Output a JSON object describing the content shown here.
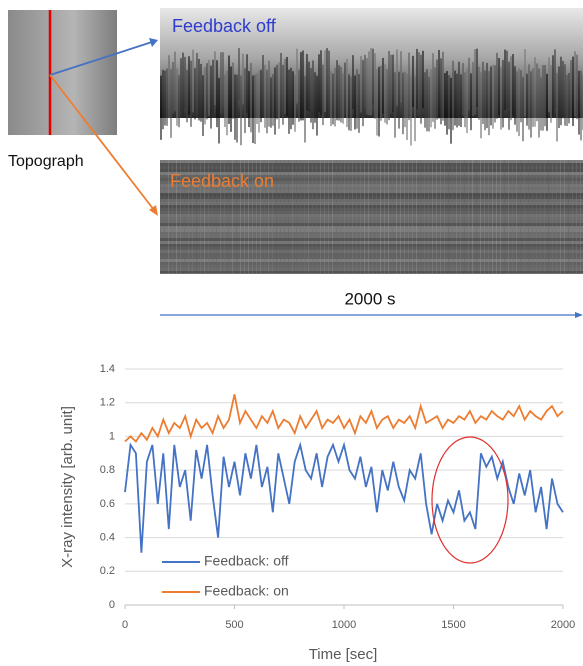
{
  "figure": {
    "topograph_label": "Topograph",
    "feedback_off_label": "Feedback off",
    "feedback_on_label": "Feedback on",
    "duration_label": "2000 s"
  },
  "chart_data": {
    "type": "line",
    "xlabel": "Time [sec]",
    "ylabel": "X-ray intensity [arb. unit]",
    "x": [
      0,
      25,
      50,
      75,
      100,
      125,
      150,
      175,
      200,
      225,
      250,
      275,
      300,
      325,
      350,
      375,
      400,
      425,
      450,
      475,
      500,
      525,
      550,
      575,
      600,
      625,
      650,
      675,
      700,
      725,
      750,
      775,
      800,
      825,
      850,
      875,
      900,
      925,
      950,
      975,
      1000,
      1025,
      1050,
      1075,
      1100,
      1125,
      1150,
      1175,
      1200,
      1225,
      1250,
      1275,
      1300,
      1325,
      1350,
      1375,
      1400,
      1425,
      1450,
      1475,
      1500,
      1525,
      1550,
      1575,
      1600,
      1625,
      1650,
      1675,
      1700,
      1725,
      1750,
      1775,
      1800,
      1825,
      1850,
      1875,
      1900,
      1925,
      1950,
      1975,
      2000
    ],
    "series": [
      {
        "name": "Feedback: off",
        "color": "#4472c4",
        "values": [
          0.67,
          0.95,
          0.9,
          0.31,
          0.85,
          0.95,
          0.6,
          0.9,
          0.45,
          0.95,
          0.7,
          0.8,
          0.5,
          0.92,
          0.75,
          0.95,
          0.65,
          0.4,
          0.88,
          0.7,
          0.85,
          0.65,
          0.9,
          0.75,
          0.95,
          0.7,
          0.82,
          0.55,
          0.9,
          0.75,
          0.6,
          0.85,
          0.95,
          0.8,
          0.75,
          0.9,
          0.7,
          0.88,
          0.95,
          0.85,
          0.95,
          0.8,
          0.75,
          0.88,
          0.7,
          0.82,
          0.55,
          0.8,
          0.68,
          0.85,
          0.7,
          0.62,
          0.8,
          0.75,
          0.9,
          0.6,
          0.42,
          0.6,
          0.5,
          0.62,
          0.55,
          0.68,
          0.5,
          0.55,
          0.45,
          0.9,
          0.82,
          0.88,
          0.75,
          0.85,
          0.7,
          0.6,
          0.78,
          0.65,
          0.8,
          0.55,
          0.7,
          0.45,
          0.75,
          0.6,
          0.55
        ]
      },
      {
        "name": "Feedback: on",
        "color": "#ed7d31",
        "values": [
          0.97,
          1.0,
          0.97,
          1.02,
          0.98,
          1.05,
          1.0,
          1.1,
          1.02,
          1.08,
          1.05,
          1.12,
          1.0,
          1.1,
          1.05,
          1.08,
          1.02,
          1.12,
          1.05,
          1.1,
          1.25,
          1.08,
          1.15,
          1.1,
          1.05,
          1.12,
          1.08,
          1.15,
          1.05,
          1.1,
          1.08,
          1.02,
          1.12,
          1.05,
          1.1,
          1.15,
          1.05,
          1.1,
          1.08,
          1.12,
          1.05,
          1.1,
          1.02,
          1.12,
          1.08,
          1.15,
          1.05,
          1.1,
          1.12,
          1.05,
          1.1,
          1.08,
          1.12,
          1.05,
          1.18,
          1.08,
          1.1,
          1.12,
          1.05,
          1.1,
          1.08,
          1.12,
          1.1,
          1.15,
          1.08,
          1.12,
          1.1,
          1.15,
          1.12,
          1.1,
          1.15,
          1.12,
          1.18,
          1.1,
          1.15,
          1.12,
          1.1,
          1.15,
          1.18,
          1.12,
          1.15
        ]
      }
    ],
    "xlim": [
      0,
      2000
    ],
    "xticks": [
      0,
      500,
      1000,
      1500,
      2000
    ],
    "ylim": [
      0,
      1.4
    ],
    "yticks": [
      0,
      0.2,
      0.4,
      0.6,
      0.8,
      1,
      1.2,
      1.4
    ],
    "grid": true,
    "legend": "lower-left"
  }
}
